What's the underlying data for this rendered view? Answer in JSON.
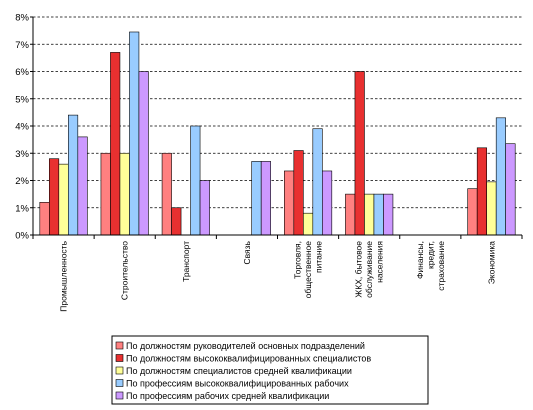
{
  "chart_data": {
    "type": "bar",
    "title": "",
    "xlabel": "",
    "ylabel": "",
    "ylim": [
      0,
      8
    ],
    "y_ticks": [
      "0%",
      "1%",
      "2%",
      "3%",
      "4%",
      "5%",
      "6%",
      "7%",
      "8%"
    ],
    "grid": "horizontal dashed",
    "legend_position": "bottom",
    "categories": [
      [
        "Промышленность"
      ],
      [
        "Строительство"
      ],
      [
        "Транспорт"
      ],
      [
        "Связь"
      ],
      [
        "Торговля,",
        "общественное",
        "питание"
      ],
      [
        "ЖКХ, бытовое",
        "обслуживание",
        "населения"
      ],
      [
        "Финансы,",
        "кредит,",
        "страхование"
      ],
      [
        "Экономика"
      ]
    ],
    "series": [
      {
        "name": "По должностям руководителей основных подразделений",
        "color": "#FF8080",
        "values": [
          1.2,
          3.0,
          3.0,
          null,
          2.35,
          1.5,
          null,
          1.7
        ]
      },
      {
        "name": "По должностям высококвалифицированных специалистов",
        "color": "#E83030",
        "values": [
          2.8,
          6.7,
          1.0,
          null,
          3.1,
          6.0,
          null,
          3.2
        ]
      },
      {
        "name": "По должностям специалистов  средней квалификации",
        "color": "#FFFF99",
        "values": [
          2.6,
          3.0,
          null,
          null,
          0.8,
          1.5,
          null,
          1.95
        ]
      },
      {
        "name": "По профессиям высококвалифицированных рабочих",
        "color": "#99CCFF",
        "values": [
          4.4,
          7.45,
          4.0,
          2.7,
          3.9,
          1.5,
          null,
          4.3
        ]
      },
      {
        "name": "По профессиям рабочих средней квалификации",
        "color": "#CC99FF",
        "values": [
          3.6,
          6.0,
          2.0,
          2.7,
          2.35,
          1.5,
          null,
          3.35
        ]
      }
    ]
  }
}
